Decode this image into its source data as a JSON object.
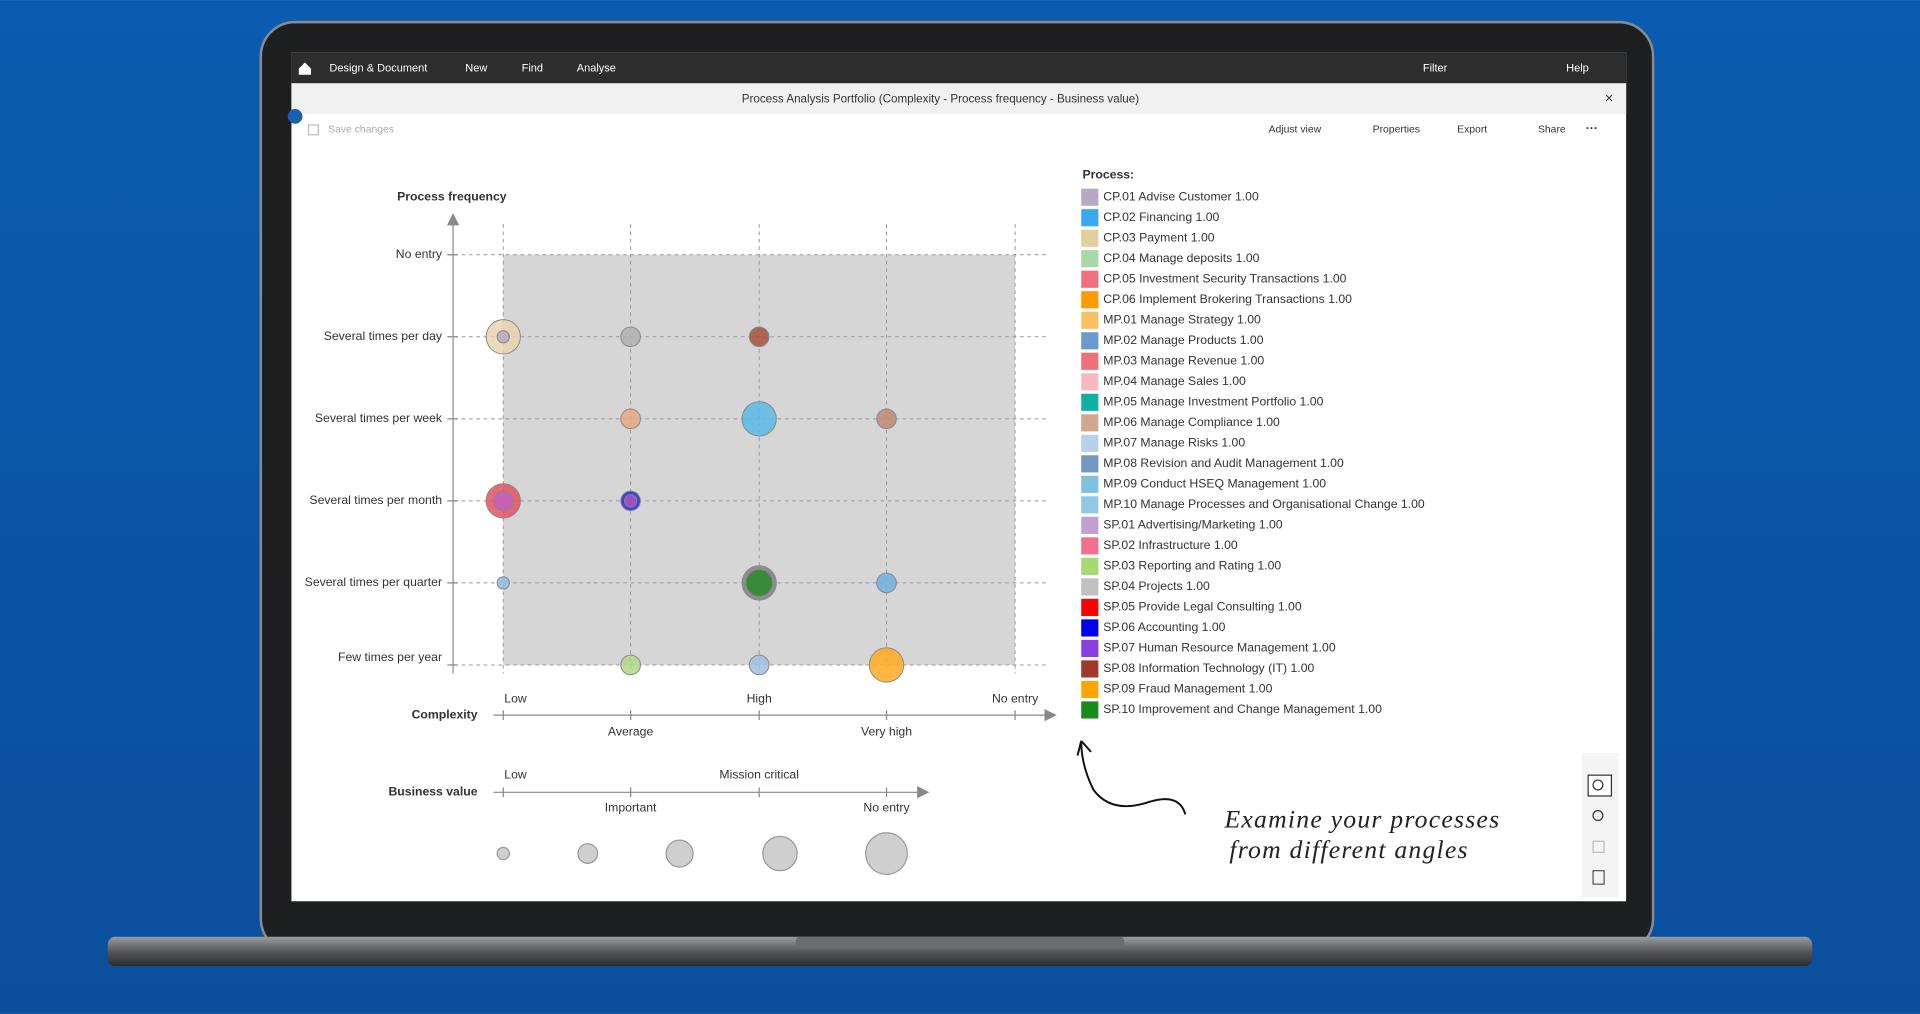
{
  "nav": {
    "left": [
      "Design & Document",
      "New",
      "Find",
      "Analyse"
    ],
    "right": [
      "Filter",
      "Help"
    ]
  },
  "window": {
    "title": "Process Analysis Portfolio (Complexity - Process frequency - Business value)"
  },
  "toolbar": {
    "save": "Save changes",
    "actions": [
      "Adjust view",
      "Properties",
      "Export",
      "Share"
    ]
  },
  "chart_data": {
    "type": "bubble",
    "y_title": "Process frequency",
    "y_categories": [
      "No entry",
      "Several times per day",
      "Several times per week",
      "Several times per month",
      "Several times per quarter",
      "Few times per year"
    ],
    "x_title": "Complexity",
    "x_categories": [
      "Low",
      "Average",
      "High",
      "Very high",
      "No entry"
    ],
    "size_title": "Business value",
    "size_categories": [
      "Low",
      "Important",
      "Mission critical",
      "No entry"
    ],
    "legend_title": "Process:",
    "legend": [
      {
        "name": "CP.01 Advise Customer 1.00",
        "color": "#b8a8c0"
      },
      {
        "name": "CP.02 Financing 1.00",
        "color": "#3aa8f0"
      },
      {
        "name": "CP.03 Payment 1.00",
        "color": "#e0d0a0"
      },
      {
        "name": "CP.04 Manage deposits 1.00",
        "color": "#a8d8a8"
      },
      {
        "name": "CP.05 Investment Security Transactions 1.00",
        "color": "#f07080"
      },
      {
        "name": "CP.06 Implement Brokering Transactions 1.00",
        "color": "#ff9a00"
      },
      {
        "name": "MP.01 Manage Strategy 1.00",
        "color": "#f8c060"
      },
      {
        "name": "MP.02 Manage Products 1.00",
        "color": "#6a9ad0"
      },
      {
        "name": "MP.03 Manage Revenue 1.00",
        "color": "#f07078"
      },
      {
        "name": "MP.04 Manage Sales 1.00",
        "color": "#f8b8c0"
      },
      {
        "name": "MP.05 Manage Investment Portfolio 1.00",
        "color": "#10b0a0"
      },
      {
        "name": "MP.06 Manage Compliance 1.00",
        "color": "#d0a890"
      },
      {
        "name": "MP.07 Manage Risks 1.00",
        "color": "#b8d0e8"
      },
      {
        "name": "MP.08 Revision and Audit Management 1.00",
        "color": "#7098c0"
      },
      {
        "name": "MP.09 Conduct HSEQ Management 1.00",
        "color": "#80c0e0"
      },
      {
        "name": "MP.10 Manage Processes and Organisational Change 1.00",
        "color": "#90c8e8"
      },
      {
        "name": "SP.01 Advertising/Marketing 1.00",
        "color": "#c0a0d0"
      },
      {
        "name": "SP.02 Infrastructure 1.00",
        "color": "#f07090"
      },
      {
        "name": "SP.03 Reporting and Rating 1.00",
        "color": "#a8d870"
      },
      {
        "name": "SP.04 Projects 1.00",
        "color": "#c0c0c0"
      },
      {
        "name": "SP.05 Provide Legal Consulting 1.00",
        "color": "#ff0000"
      },
      {
        "name": "SP.06 Accounting 1.00",
        "color": "#0000ee"
      },
      {
        "name": "SP.07 Human Resource Management 1.00",
        "color": "#8a40e0"
      },
      {
        "name": "SP.08 Information Technology (IT) 1.00",
        "color": "#a03830"
      },
      {
        "name": "SP.09 Fraud Management 1.00",
        "color": "#ffa500"
      },
      {
        "name": "SP.10 Improvement and Change Management 1.00",
        "color": "#1a8a1a"
      }
    ],
    "bubbles": [
      {
        "x": 0,
        "y": 1,
        "size": 3,
        "color": "#e8d5b0"
      },
      {
        "x": 0,
        "y": 1,
        "size": 0,
        "color": "#b8a8c0"
      },
      {
        "x": 1,
        "y": 1,
        "size": 1,
        "color": "#b0b0b0"
      },
      {
        "x": 2,
        "y": 1,
        "size": 1,
        "color": "#a85040"
      },
      {
        "x": 1,
        "y": 2,
        "size": 1,
        "color": "#e8a880"
      },
      {
        "x": 2,
        "y": 2,
        "size": 3,
        "color": "#5ab8e8"
      },
      {
        "x": 3,
        "y": 2,
        "size": 1,
        "color": "#c08878"
      },
      {
        "x": 0,
        "y": 3,
        "size": 3,
        "color": "#e85060"
      },
      {
        "x": 0,
        "y": 3,
        "size": 1,
        "color": "#c060c0"
      },
      {
        "x": 1,
        "y": 3,
        "size": 1,
        "color": "#2828d8"
      },
      {
        "x": 1,
        "y": 3,
        "size": 0,
        "color": "#b050c0"
      },
      {
        "x": 0,
        "y": 4,
        "size": 0,
        "color": "#90b8e0"
      },
      {
        "x": 2,
        "y": 4,
        "size": 3,
        "color": "#808080"
      },
      {
        "x": 2,
        "y": 4,
        "size": 2,
        "color": "#2a8a2a"
      },
      {
        "x": 3,
        "y": 4,
        "size": 1,
        "color": "#70b0e0"
      },
      {
        "x": 1,
        "y": 5,
        "size": 1,
        "color": "#b0d888"
      },
      {
        "x": 2,
        "y": 5,
        "size": 1,
        "color": "#a0c0e0"
      },
      {
        "x": 3,
        "y": 5,
        "size": 3,
        "color": "#ffaa20"
      }
    ]
  },
  "annotation": [
    "Examine your processes",
    "from different angles"
  ]
}
